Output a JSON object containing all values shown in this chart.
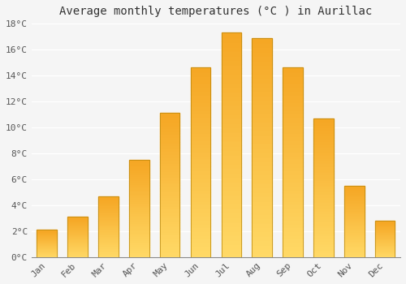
{
  "title": "Average monthly temperatures (°C ) in Aurillac",
  "months": [
    "Jan",
    "Feb",
    "Mar",
    "Apr",
    "May",
    "Jun",
    "Jul",
    "Aug",
    "Sep",
    "Oct",
    "Nov",
    "Dec"
  ],
  "values": [
    2.1,
    3.1,
    4.7,
    7.5,
    11.1,
    14.6,
    17.3,
    16.9,
    14.6,
    10.7,
    5.5,
    2.8
  ],
  "bar_color_top": "#F5A623",
  "bar_color_bottom": "#FFD966",
  "bar_edge_color": "#B8860B",
  "background_color": "#F5F5F5",
  "plot_bg_color": "#F5F5F5",
  "grid_color": "#FFFFFF",
  "text_color": "#555555",
  "title_color": "#333333",
  "ylim": [
    0,
    18
  ],
  "ytick_step": 2,
  "title_fontsize": 10,
  "tick_fontsize": 8,
  "font_family": "monospace"
}
